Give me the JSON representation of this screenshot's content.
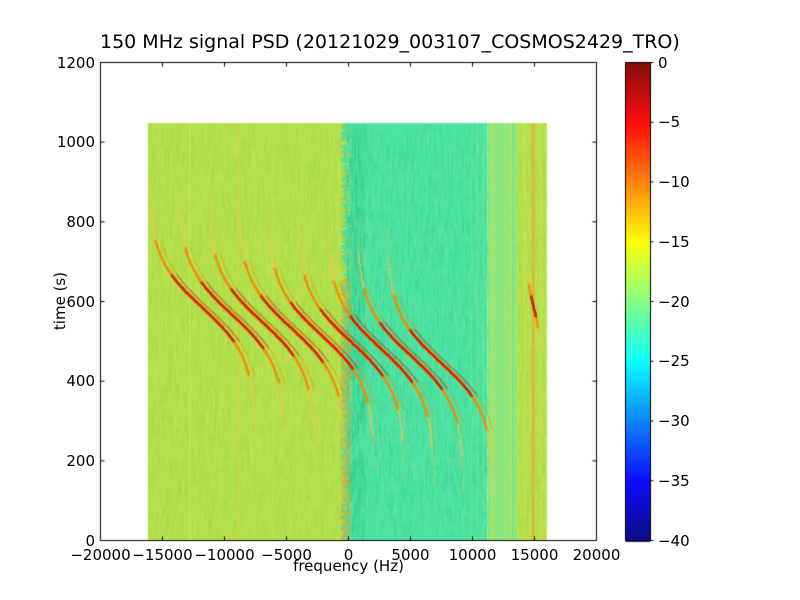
{
  "chart_data": {
    "type": "heatmap",
    "title": "150 MHz signal PSD (20121029_003107_COSMOS2429_TRO)",
    "xlabel": "frequency (Hz)",
    "ylabel": "time (s)",
    "xlim": [
      -20000,
      20000
    ],
    "ylim": [
      0,
      1200
    ],
    "xtick_values": [
      -20000,
      -15000,
      -10000,
      -5000,
      0,
      5000,
      10000,
      15000,
      20000
    ],
    "xtick_labels": [
      "−20000",
      "−15000",
      "−10000",
      "−5000",
      "0",
      "5000",
      "10000",
      "15000",
      "20000"
    ],
    "ytick_values": [
      0,
      200,
      400,
      600,
      800,
      1000,
      1200
    ],
    "ytick_labels": [
      "0",
      "200",
      "400",
      "600",
      "800",
      "1000",
      "1200"
    ],
    "grid": false,
    "colorbar": {
      "colormap": "jet",
      "vmin": -40,
      "vmax": 0,
      "tick_values": [
        0,
        -5,
        -10,
        -15,
        -20,
        -25,
        -30,
        -35,
        -40
      ],
      "tick_labels": [
        "0",
        "−5",
        "−10",
        "−15",
        "−20",
        "−25",
        "−30",
        "−35",
        "−40"
      ]
    },
    "data_extent": {
      "freq_hz": [
        -16200,
        16000
      ],
      "time_s": [
        0,
        1048
      ]
    },
    "background_regions": [
      {
        "name": "left-band",
        "freq_hz": [
          -16200,
          -150
        ],
        "psd_db": -17.5,
        "color": "#b3e04e",
        "speckle": [
          "#c6ea58",
          "#a2d845"
        ]
      },
      {
        "name": "center-band",
        "freq_hz": [
          -150,
          11200
        ],
        "psd_db": -22,
        "color": "#4de2a1",
        "speckle": [
          "#68eab0",
          "#38d492"
        ]
      },
      {
        "name": "striped-band",
        "freq_hz": [
          11200,
          13600
        ],
        "psd_db": -19.5,
        "color": "#93e878",
        "speckle": [
          "#b0ea6c",
          "#6fe594"
        ],
        "striped": true
      },
      {
        "name": "right-band",
        "freq_hz": [
          13600,
          16000
        ],
        "psd_db": -17.5,
        "color": "#b3e04e",
        "speckle": [
          "#c9ea5a",
          "#a2d845"
        ]
      }
    ],
    "boundary": {
      "freq_hz": -150,
      "noise_band_hz": [
        -650,
        150
      ],
      "noise_colors": [
        "#d8b430",
        "#e89a28"
      ]
    },
    "vertical_stripes": [
      {
        "freq_hz": -12800,
        "width_hz": 120,
        "color": "#cdea57",
        "alpha": 0.7
      },
      {
        "freq_hz": -8900,
        "width_hz": 110,
        "color": "#e2cf3a",
        "alpha": 0.75
      },
      {
        "freq_hz": -6100,
        "width_hz": 90,
        "color": "#c9e855",
        "alpha": 0.55
      },
      {
        "freq_hz": 9900,
        "width_hz": 110,
        "color": "#9fe878",
        "alpha": 0.3
      },
      {
        "freq_hz": 10400,
        "width_hz": 110,
        "color": "#a8ea72",
        "alpha": 0.3
      },
      {
        "freq_hz": 10900,
        "width_hz": 110,
        "color": "#9fe878",
        "alpha": 0.35
      },
      {
        "freq_hz": 11600,
        "width_hz": 140,
        "color": "#bce865",
        "alpha": 0.6
      },
      {
        "freq_hz": 12300,
        "width_hz": 120,
        "color": "#a8ea72",
        "alpha": 0.6
      },
      {
        "freq_hz": 13100,
        "width_hz": 140,
        "color": "#c3e95f",
        "alpha": 0.6
      },
      {
        "freq_hz": 14200,
        "width_hz": 120,
        "color": "#cde957",
        "alpha": 0.6
      },
      {
        "freq_hz": 14900,
        "width_hz": 220,
        "color": "#f2a62e",
        "alpha": 0.8
      },
      {
        "freq_hz": 15500,
        "width_hz": 130,
        "color": "#dde24b",
        "alpha": 0.6
      }
    ],
    "doppler_traces": {
      "shape": "f(t) = fc − A·tanh((t−t0)/tau)",
      "amplitude_hz": 4300,
      "tau_s": 125,
      "echo_offset_hz": 450,
      "traces": [
        {
          "fc_hz": -11800,
          "t0_s": 585
        },
        {
          "fc_hz": -9400,
          "t0_s": 567
        },
        {
          "fc_hz": -7000,
          "t0_s": 550
        },
        {
          "fc_hz": -4600,
          "t0_s": 533
        },
        {
          "fc_hz": -2200,
          "t0_s": 516
        },
        {
          "fc_hz": 200,
          "t0_s": 499
        },
        {
          "fc_hz": 2600,
          "t0_s": 482
        },
        {
          "fc_hz": 5000,
          "t0_s": 465
        },
        {
          "fc_hz": 7400,
          "t0_s": 448
        }
      ],
      "short_trace": {
        "fc_hz": 14900,
        "t0_s": 590,
        "amplitude_hz": 700,
        "tau_s": 90,
        "t_range_s": [
          480,
          700
        ]
      }
    },
    "colors": {
      "trace_core": "#d42600",
      "trace_mid": "#fb8800",
      "trace_outer": "#ffc24a",
      "halo": "#ff9000",
      "axes": "#000000"
    }
  }
}
